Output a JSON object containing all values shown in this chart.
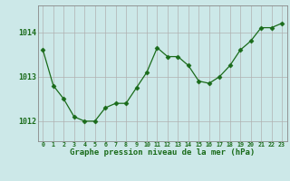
{
  "hours": [
    0,
    1,
    2,
    3,
    4,
    5,
    6,
    7,
    8,
    9,
    10,
    11,
    12,
    13,
    14,
    15,
    16,
    17,
    18,
    19,
    20,
    21,
    22,
    23
  ],
  "pressure": [
    1013.6,
    1012.8,
    1012.5,
    1012.1,
    1012.0,
    1012.0,
    1012.3,
    1012.4,
    1012.4,
    1012.75,
    1013.1,
    1013.65,
    1013.45,
    1013.45,
    1013.25,
    1012.9,
    1012.85,
    1013.0,
    1013.25,
    1013.6,
    1013.8,
    1014.1,
    1014.1,
    1014.2
  ],
  "line_color": "#1a6b1a",
  "marker_color": "#1a6b1a",
  "bg_color": "#cce8e8",
  "grid_color": "#b0b0b0",
  "ylabel_ticks": [
    1012,
    1013,
    1014
  ],
  "xlabel": "Graphe pression niveau de la mer (hPa)",
  "ylim": [
    1011.55,
    1014.6
  ],
  "xlim": [
    -0.5,
    23.5
  ]
}
